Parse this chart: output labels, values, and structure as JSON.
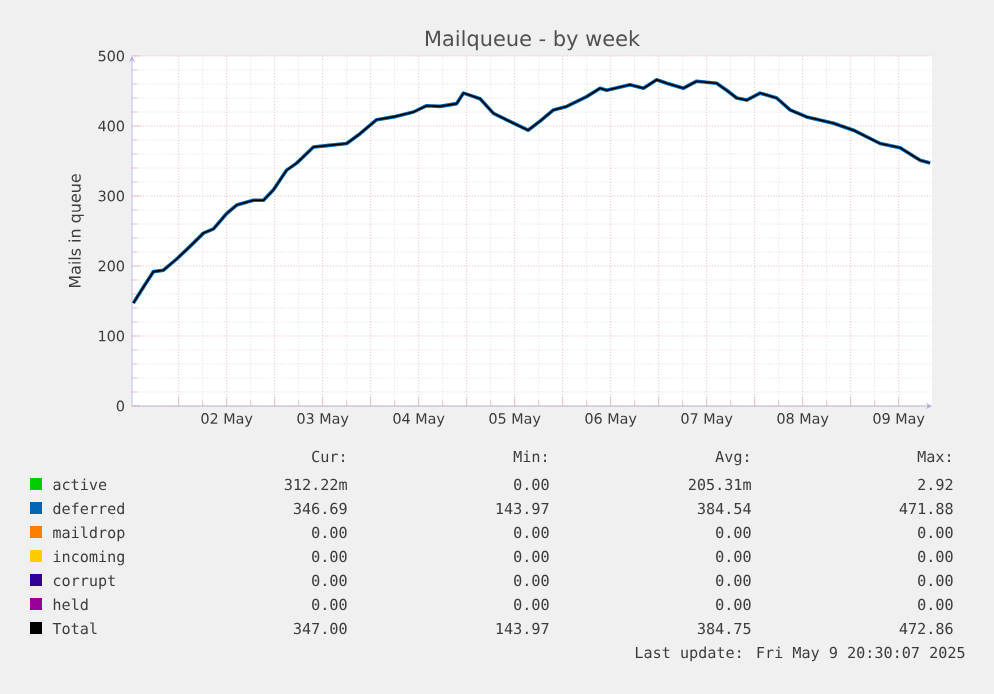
{
  "chart_data": {
    "type": "line",
    "title": "Mailqueue - by week",
    "ylabel": "Mails in queue",
    "x": [
      "2025-05-01T12:40",
      "2025-05-01T15:12",
      "2025-05-01T17:42",
      "2025-05-01T20:12",
      "2025-05-01T23:30",
      "2025-05-02T02:50",
      "2025-05-02T06:12",
      "2025-05-02T08:42",
      "2025-05-02T12:00",
      "2025-05-02T14:30",
      "2025-05-02T18:42",
      "2025-05-02T21:12",
      "2025-05-02T23:42",
      "2025-05-03T03:00",
      "2025-05-03T05:30",
      "2025-05-03T09:42",
      "2025-05-03T13:00",
      "2025-05-03T18:00",
      "2025-05-03T21:21",
      "2025-05-04T01:30",
      "2025-05-04T05:42",
      "2025-05-04T10:42",
      "2025-05-04T14:00",
      "2025-05-04T17:21",
      "2025-05-04T21:30",
      "2025-05-04T23:12",
      "2025-05-05T03:21",
      "2025-05-05T06:42",
      "2025-05-05T11:42",
      "2025-05-05T15:21",
      "2025-05-05T18:21",
      "2025-05-05T21:42",
      "2025-05-06T01:00",
      "2025-05-06T06:00",
      "2025-05-06T09:21",
      "2025-05-06T11:00",
      "2025-05-06T16:51",
      "2025-05-06T20:12",
      "2025-05-06T23:30",
      "2025-05-07T02:00",
      "2025-05-07T06:12",
      "2025-05-07T09:30",
      "2025-05-07T14:30",
      "2025-05-07T17:00",
      "2025-05-07T19:30",
      "2025-05-07T22:00",
      "2025-05-08T01:21",
      "2025-05-08T05:30",
      "2025-05-08T08:51",
      "2025-05-08T13:00",
      "2025-05-08T19:42",
      "2025-05-09T00:42",
      "2025-05-09T07:21",
      "2025-05-09T12:21",
      "2025-05-09T17:21",
      "2025-05-09T19:51"
    ],
    "series": [
      {
        "name": "active",
        "color": "#00cc00",
        "values": [
          null,
          null,
          null,
          null,
          null,
          null,
          null,
          null,
          null,
          null,
          null,
          null,
          null,
          null,
          null,
          null,
          null,
          null,
          null,
          null,
          null,
          null,
          null,
          null,
          null,
          null,
          null,
          null,
          null,
          null,
          null,
          null,
          null,
          null,
          null,
          null,
          null,
          null,
          null,
          null,
          null,
          null,
          null,
          null,
          null,
          null,
          null,
          null,
          null,
          null,
          null,
          null,
          null,
          null,
          null,
          null
        ]
      },
      {
        "name": "deferred",
        "color": "#0066b3",
        "values": [
          147,
          170,
          192,
          194,
          210,
          228,
          247,
          253,
          275,
          287,
          294,
          294,
          309,
          337,
          347,
          370,
          372,
          375,
          389,
          409,
          413,
          420,
          429,
          428,
          432,
          447,
          439,
          418,
          404,
          394,
          407,
          423,
          428,
          442,
          454,
          451,
          459,
          454,
          466,
          461,
          454,
          464,
          461,
          451,
          440,
          437,
          447,
          440,
          423,
          413,
          404,
          394,
          375,
          369,
          351,
          347
        ]
      },
      {
        "name": "maildrop",
        "color": "#ff8000",
        "values": [
          null,
          null,
          null,
          null,
          null,
          null,
          null,
          null,
          null,
          null,
          null,
          null,
          null,
          null,
          null,
          null,
          null,
          null,
          null,
          null,
          null,
          null,
          null,
          null,
          null,
          null,
          null,
          null,
          null,
          null,
          null,
          null,
          null,
          null,
          null,
          null,
          null,
          null,
          null,
          null,
          null,
          null,
          null,
          null,
          null,
          null,
          null,
          null,
          null,
          null,
          null,
          null,
          null,
          null,
          null,
          null
        ]
      },
      {
        "name": "incoming",
        "color": "#ffcc00",
        "values": [
          null,
          null,
          null,
          null,
          null,
          null,
          null,
          null,
          null,
          null,
          null,
          null,
          null,
          null,
          null,
          null,
          null,
          null,
          null,
          null,
          null,
          null,
          null,
          null,
          null,
          null,
          null,
          null,
          null,
          null,
          null,
          null,
          null,
          null,
          null,
          null,
          null,
          null,
          null,
          null,
          null,
          null,
          null,
          null,
          null,
          null,
          null,
          null,
          null,
          null,
          null,
          null,
          null,
          null,
          null,
          null
        ]
      },
      {
        "name": "corrupt",
        "color": "#330099",
        "values": [
          null,
          null,
          null,
          null,
          null,
          null,
          null,
          null,
          null,
          null,
          null,
          null,
          null,
          null,
          null,
          null,
          null,
          null,
          null,
          null,
          null,
          null,
          null,
          null,
          null,
          null,
          null,
          null,
          null,
          null,
          null,
          null,
          null,
          null,
          null,
          null,
          null,
          null,
          null,
          null,
          null,
          null,
          null,
          null,
          null,
          null,
          null,
          null,
          null,
          null,
          null,
          null,
          null,
          null,
          null,
          null
        ]
      },
      {
        "name": "held",
        "color": "#990099",
        "values": [
          null,
          null,
          null,
          null,
          null,
          null,
          null,
          null,
          null,
          null,
          null,
          null,
          null,
          null,
          null,
          null,
          null,
          null,
          null,
          null,
          null,
          null,
          null,
          null,
          null,
          null,
          null,
          null,
          null,
          null,
          null,
          null,
          null,
          null,
          null,
          null,
          null,
          null,
          null,
          null,
          null,
          null,
          null,
          null,
          null,
          null,
          null,
          null,
          null,
          null,
          null,
          null,
          null,
          null,
          null,
          null
        ]
      },
      {
        "name": "Total",
        "color": "#000000",
        "values": [
          147,
          170,
          192,
          194,
          210,
          228,
          247,
          253,
          275,
          287,
          294,
          294,
          309,
          337,
          347,
          370,
          372,
          375,
          389,
          409,
          413,
          420,
          429,
          428,
          432,
          447,
          439,
          418,
          404,
          394,
          407,
          423,
          428,
          442,
          454,
          451,
          459,
          454,
          466,
          461,
          454,
          464,
          461,
          451,
          440,
          437,
          447,
          440,
          423,
          413,
          404,
          394,
          375,
          369,
          351,
          347
        ]
      }
    ],
    "xlim": [
      "2025-05-01T12:20",
      "2025-05-09T20:20"
    ],
    "xticks": [
      {
        "value": "2025-05-02T00:00",
        "label": null
      },
      {
        "value": "2025-05-02T12:00",
        "label": "02 May"
      },
      {
        "value": "2025-05-03T00:00",
        "label": null
      },
      {
        "value": "2025-05-03T12:00",
        "label": "03 May"
      },
      {
        "value": "2025-05-04T00:00",
        "label": null
      },
      {
        "value": "2025-05-04T12:00",
        "label": "04 May"
      },
      {
        "value": "2025-05-05T00:00",
        "label": null
      },
      {
        "value": "2025-05-05T12:00",
        "label": "05 May"
      },
      {
        "value": "2025-05-06T00:00",
        "label": null
      },
      {
        "value": "2025-05-06T12:00",
        "label": "06 May"
      },
      {
        "value": "2025-05-07T00:00",
        "label": null
      },
      {
        "value": "2025-05-07T12:00",
        "label": "07 May"
      },
      {
        "value": "2025-05-08T00:00",
        "label": null
      },
      {
        "value": "2025-05-08T12:00",
        "label": "08 May"
      },
      {
        "value": "2025-05-09T00:00",
        "label": null
      },
      {
        "value": "2025-05-09T12:00",
        "label": "09 May"
      }
    ],
    "ylim": [
      0,
      500
    ],
    "yticks": [
      0,
      100,
      200,
      300,
      400,
      500
    ],
    "grid": true,
    "legend": "bottom",
    "marker": "none",
    "line_style": "solid",
    "annotations": [
      "Cur:",
      "Min:",
      "Avg:",
      "Max:",
      "312.22m",
      "0.00",
      "205.31m",
      "2.92",
      "346.69",
      "143.97",
      "384.54",
      "471.88",
      "0.00",
      "0.00",
      "0.00",
      "0.00",
      "0.00",
      "0.00",
      "0.00",
      "0.00",
      "0.00",
      "0.00",
      "0.00",
      "0.00",
      "0.00",
      "0.00",
      "0.00",
      "0.00",
      "347.00",
      "143.97",
      "384.75",
      "472.86",
      "Last update: Fri May  9 20:30:07 2025"
    ]
  }
}
